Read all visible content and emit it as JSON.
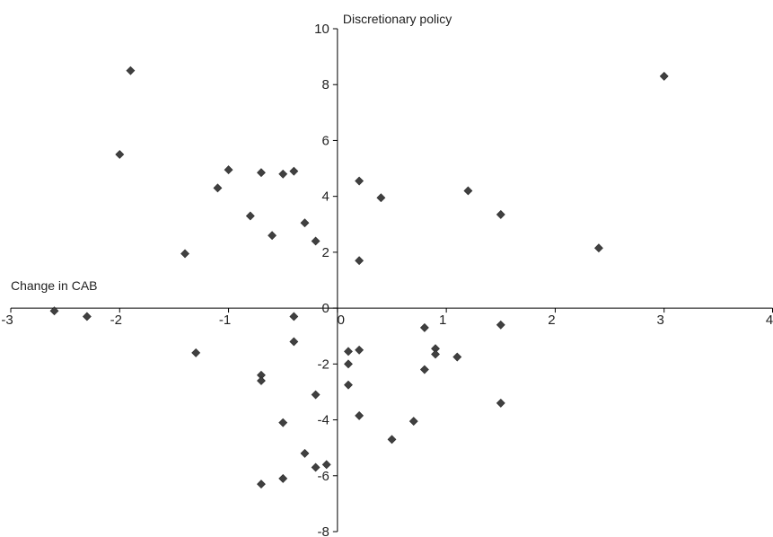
{
  "chart_data": {
    "type": "scatter",
    "xlabel": "Change in CAB",
    "ylabel": "Discretionary policy",
    "xlim": [
      -3,
      4
    ],
    "ylim": [
      -8,
      10
    ],
    "x_ticks": [
      -3,
      -2,
      -1,
      0,
      1,
      2,
      3,
      4
    ],
    "y_ticks": [
      -8,
      -6,
      -4,
      -2,
      0,
      2,
      4,
      6,
      8,
      10
    ],
    "x_tick_labels": [
      "-3",
      "-2",
      "-1",
      "0",
      "1",
      "2",
      "3",
      "4"
    ],
    "y_tick_labels": [
      "-8",
      "-6",
      "-4",
      "-2",
      "0",
      "2",
      "4",
      "6",
      "8",
      "10"
    ],
    "grid": false,
    "marker": "diamond",
    "marker_color": "#404040",
    "points": [
      {
        "x": -1.9,
        "y": 8.5
      },
      {
        "x": -2.0,
        "y": 5.5
      },
      {
        "x": -1.4,
        "y": 1.95
      },
      {
        "x": -1.1,
        "y": 4.3
      },
      {
        "x": -1.0,
        "y": 4.95
      },
      {
        "x": -0.8,
        "y": 3.3
      },
      {
        "x": -0.7,
        "y": 4.85
      },
      {
        "x": -0.6,
        "y": 2.6
      },
      {
        "x": -0.5,
        "y": 4.8
      },
      {
        "x": -0.4,
        "y": 4.9
      },
      {
        "x": -0.3,
        "y": 3.05
      },
      {
        "x": -0.2,
        "y": 2.4
      },
      {
        "x": 0.2,
        "y": 4.55
      },
      {
        "x": 0.2,
        "y": 1.7
      },
      {
        "x": 0.4,
        "y": 3.95
      },
      {
        "x": 1.2,
        "y": 4.2
      },
      {
        "x": 1.5,
        "y": 3.35
      },
      {
        "x": 2.4,
        "y": 2.15
      },
      {
        "x": 3.0,
        "y": 8.3
      },
      {
        "x": -2.6,
        "y": -0.1
      },
      {
        "x": -2.3,
        "y": -0.3
      },
      {
        "x": -1.3,
        "y": -1.6
      },
      {
        "x": -0.7,
        "y": -2.4
      },
      {
        "x": -0.7,
        "y": -2.6
      },
      {
        "x": -0.7,
        "y": -6.3
      },
      {
        "x": -0.5,
        "y": -4.1
      },
      {
        "x": -0.5,
        "y": -6.1
      },
      {
        "x": -0.4,
        "y": -0.3
      },
      {
        "x": -0.4,
        "y": -1.2
      },
      {
        "x": -0.3,
        "y": -5.2
      },
      {
        "x": -0.2,
        "y": -3.1
      },
      {
        "x": -0.2,
        "y": -5.7
      },
      {
        "x": -0.1,
        "y": -5.6
      },
      {
        "x": 0.1,
        "y": -1.55
      },
      {
        "x": 0.1,
        "y": -2.0
      },
      {
        "x": 0.1,
        "y": -2.75
      },
      {
        "x": 0.2,
        "y": -1.5
      },
      {
        "x": 0.2,
        "y": -3.85
      },
      {
        "x": 0.5,
        "y": -4.7
      },
      {
        "x": 0.7,
        "y": -4.05
      },
      {
        "x": 0.8,
        "y": -0.7
      },
      {
        "x": 0.8,
        "y": -2.2
      },
      {
        "x": 0.9,
        "y": -1.45
      },
      {
        "x": 0.9,
        "y": -1.65
      },
      {
        "x": 1.1,
        "y": -1.75
      },
      {
        "x": 1.5,
        "y": -0.6
      },
      {
        "x": 1.5,
        "y": -3.4
      }
    ]
  }
}
